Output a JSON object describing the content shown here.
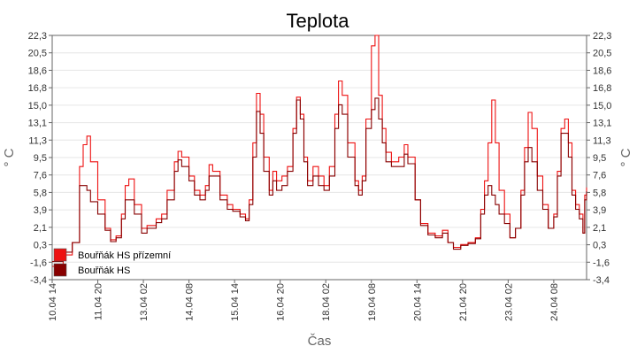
{
  "chart_data": {
    "type": "line",
    "title": "Teplota",
    "xlabel": "Čas",
    "ylabel": "° C",
    "ylim": [
      -3.4,
      22.3
    ],
    "y_ticks": [
      "22,3",
      "20,5",
      "18,6",
      "16,8",
      "15,0",
      "13,1",
      "11,3",
      "9,5",
      "7,6",
      "5,8",
      "3,9",
      "2,1",
      "0,3",
      "-1,6",
      "-3,4"
    ],
    "x_range": [
      0,
      14.65
    ],
    "x_ticks": [
      {
        "label": "10.04 14",
        "x": 0
      },
      {
        "label": "11.04 20",
        "x": 1.25
      },
      {
        "label": "13.04 02",
        "x": 2.5
      },
      {
        "label": "14.04 08",
        "x": 3.75
      },
      {
        "label": "15.04 14",
        "x": 5.0
      },
      {
        "label": "16.04 20",
        "x": 6.25
      },
      {
        "label": "18.04 02",
        "x": 7.5
      },
      {
        "label": "19.04 08",
        "x": 8.75
      },
      {
        "label": "20.04 14",
        "x": 10.0
      },
      {
        "label": "21.04 20",
        "x": 11.25
      },
      {
        "label": "23.04 02",
        "x": 12.5
      },
      {
        "label": "24.04 08",
        "x": 13.75
      }
    ],
    "grid": true,
    "legend_position": "bottom-left",
    "series": [
      {
        "name": "Bouřňák HS přízemní",
        "color": "#ee1111",
        "points": [
          [
            0,
            -2.0
          ],
          [
            0.3,
            -0.8
          ],
          [
            0.55,
            0.5
          ],
          [
            0.75,
            8.5
          ],
          [
            0.85,
            10.8
          ],
          [
            0.95,
            11.7
          ],
          [
            1.05,
            9.0
          ],
          [
            1.25,
            5.0
          ],
          [
            1.45,
            2.0
          ],
          [
            1.6,
            0.8
          ],
          [
            1.75,
            1.2
          ],
          [
            1.9,
            3.5
          ],
          [
            2.0,
            6.5
          ],
          [
            2.1,
            7.2
          ],
          [
            2.25,
            4.5
          ],
          [
            2.45,
            2.0
          ],
          [
            2.6,
            2.3
          ],
          [
            2.85,
            3.0
          ],
          [
            3.0,
            3.5
          ],
          [
            3.15,
            6.0
          ],
          [
            3.35,
            9.0
          ],
          [
            3.45,
            10.1
          ],
          [
            3.55,
            9.5
          ],
          [
            3.75,
            7.5
          ],
          [
            3.9,
            6.0
          ],
          [
            4.05,
            5.5
          ],
          [
            4.2,
            6.5
          ],
          [
            4.3,
            8.7
          ],
          [
            4.4,
            8.0
          ],
          [
            4.6,
            5.5
          ],
          [
            4.8,
            4.5
          ],
          [
            4.95,
            4.0
          ],
          [
            5.15,
            3.5
          ],
          [
            5.3,
            3.0
          ],
          [
            5.4,
            5.0
          ],
          [
            5.5,
            11.0
          ],
          [
            5.6,
            16.2
          ],
          [
            5.7,
            14.0
          ],
          [
            5.8,
            9.5
          ],
          [
            5.95,
            6.0
          ],
          [
            6.05,
            8.0
          ],
          [
            6.15,
            7.0
          ],
          [
            6.3,
            7.5
          ],
          [
            6.45,
            8.5
          ],
          [
            6.6,
            12.5
          ],
          [
            6.7,
            15.8
          ],
          [
            6.8,
            14.0
          ],
          [
            6.9,
            9.5
          ],
          [
            7.0,
            7.0
          ],
          [
            7.15,
            8.5
          ],
          [
            7.3,
            7.5
          ],
          [
            7.45,
            6.5
          ],
          [
            7.6,
            8.5
          ],
          [
            7.75,
            14.0
          ],
          [
            7.85,
            17.5
          ],
          [
            7.95,
            16.0
          ],
          [
            8.1,
            11.0
          ],
          [
            8.3,
            7.0
          ],
          [
            8.4,
            6.0
          ],
          [
            8.5,
            7.5
          ],
          [
            8.6,
            13.5
          ],
          [
            8.75,
            21.2
          ],
          [
            8.85,
            22.3
          ],
          [
            8.95,
            16.0
          ],
          [
            9.05,
            12.5
          ],
          [
            9.15,
            10.0
          ],
          [
            9.3,
            9.0
          ],
          [
            9.5,
            9.5
          ],
          [
            9.65,
            10.8
          ],
          [
            9.75,
            9.5
          ],
          [
            9.95,
            5.0
          ],
          [
            10.1,
            2.5
          ],
          [
            10.3,
            1.5
          ],
          [
            10.5,
            1.2
          ],
          [
            10.7,
            1.8
          ],
          [
            10.85,
            0.5
          ],
          [
            11.0,
            0.0
          ],
          [
            11.2,
            0.3
          ],
          [
            11.4,
            0.5
          ],
          [
            11.6,
            1.0
          ],
          [
            11.75,
            4.0
          ],
          [
            11.85,
            7.0
          ],
          [
            11.95,
            11.0
          ],
          [
            12.05,
            15.5
          ],
          [
            12.15,
            11.0
          ],
          [
            12.25,
            6.0
          ],
          [
            12.4,
            3.5
          ],
          [
            12.55,
            1.0
          ],
          [
            12.7,
            2.0
          ],
          [
            12.85,
            6.0
          ],
          [
            12.95,
            10.5
          ],
          [
            13.05,
            14.2
          ],
          [
            13.15,
            12.5
          ],
          [
            13.3,
            7.5
          ],
          [
            13.45,
            4.5
          ],
          [
            13.6,
            2.0
          ],
          [
            13.75,
            3.5
          ],
          [
            13.85,
            8.0
          ],
          [
            13.95,
            12.5
          ],
          [
            14.05,
            13.5
          ],
          [
            14.15,
            11.0
          ],
          [
            14.25,
            6.0
          ],
          [
            14.35,
            4.5
          ],
          [
            14.45,
            3.5
          ],
          [
            14.55,
            1.5
          ],
          [
            14.6,
            5.5
          ],
          [
            14.65,
            6.3
          ]
        ]
      },
      {
        "name": "Bouřňák HS",
        "color": "#880000",
        "points": [
          [
            0,
            -1.5
          ],
          [
            0.3,
            -0.5
          ],
          [
            0.55,
            0.5
          ],
          [
            0.75,
            6.5
          ],
          [
            0.85,
            6.5
          ],
          [
            0.95,
            6.0
          ],
          [
            1.05,
            4.8
          ],
          [
            1.25,
            3.5
          ],
          [
            1.45,
            1.8
          ],
          [
            1.6,
            0.6
          ],
          [
            1.75,
            1.0
          ],
          [
            1.9,
            3.0
          ],
          [
            2.0,
            5.0
          ],
          [
            2.1,
            5.0
          ],
          [
            2.25,
            3.5
          ],
          [
            2.45,
            1.5
          ],
          [
            2.6,
            2.0
          ],
          [
            2.85,
            2.6
          ],
          [
            3.0,
            3.0
          ],
          [
            3.15,
            5.0
          ],
          [
            3.35,
            8.0
          ],
          [
            3.45,
            9.2
          ],
          [
            3.55,
            8.5
          ],
          [
            3.75,
            7.0
          ],
          [
            3.9,
            5.5
          ],
          [
            4.05,
            5.0
          ],
          [
            4.2,
            6.0
          ],
          [
            4.3,
            7.5
          ],
          [
            4.4,
            7.5
          ],
          [
            4.6,
            5.0
          ],
          [
            4.8,
            4.0
          ],
          [
            4.95,
            3.8
          ],
          [
            5.15,
            3.2
          ],
          [
            5.3,
            2.8
          ],
          [
            5.4,
            4.5
          ],
          [
            5.5,
            9.5
          ],
          [
            5.6,
            14.3
          ],
          [
            5.7,
            12.0
          ],
          [
            5.8,
            8.0
          ],
          [
            5.95,
            5.5
          ],
          [
            6.05,
            7.0
          ],
          [
            6.15,
            6.0
          ],
          [
            6.3,
            6.5
          ],
          [
            6.45,
            8.0
          ],
          [
            6.6,
            12.0
          ],
          [
            6.7,
            15.5
          ],
          [
            6.8,
            13.5
          ],
          [
            6.9,
            9.0
          ],
          [
            7.0,
            6.5
          ],
          [
            7.15,
            7.5
          ],
          [
            7.3,
            6.5
          ],
          [
            7.45,
            6.0
          ],
          [
            7.6,
            7.5
          ],
          [
            7.75,
            12.5
          ],
          [
            7.85,
            15.0
          ],
          [
            7.95,
            14.0
          ],
          [
            8.1,
            9.5
          ],
          [
            8.3,
            6.5
          ],
          [
            8.4,
            5.5
          ],
          [
            8.5,
            7.0
          ],
          [
            8.6,
            12.5
          ],
          [
            8.75,
            14.5
          ],
          [
            8.85,
            15.7
          ],
          [
            8.95,
            13.5
          ],
          [
            9.05,
            11.0
          ],
          [
            9.15,
            9.0
          ],
          [
            9.3,
            8.5
          ],
          [
            9.5,
            8.5
          ],
          [
            9.65,
            9.8
          ],
          [
            9.75,
            8.8
          ],
          [
            9.95,
            5.0
          ],
          [
            10.1,
            2.3
          ],
          [
            10.3,
            1.3
          ],
          [
            10.5,
            1.0
          ],
          [
            10.7,
            1.5
          ],
          [
            10.85,
            0.5
          ],
          [
            11.0,
            -0.2
          ],
          [
            11.2,
            0.2
          ],
          [
            11.4,
            0.4
          ],
          [
            11.6,
            0.9
          ],
          [
            11.75,
            3.5
          ],
          [
            11.85,
            5.5
          ],
          [
            11.95,
            6.5
          ],
          [
            12.05,
            5.5
          ],
          [
            12.15,
            4.5
          ],
          [
            12.25,
            3.5
          ],
          [
            12.4,
            2.5
          ],
          [
            12.55,
            1.0
          ],
          [
            12.7,
            2.0
          ],
          [
            12.85,
            5.5
          ],
          [
            12.95,
            9.0
          ],
          [
            13.05,
            10.5
          ],
          [
            13.15,
            9.0
          ],
          [
            13.3,
            6.0
          ],
          [
            13.45,
            4.0
          ],
          [
            13.6,
            2.0
          ],
          [
            13.75,
            3.2
          ],
          [
            13.85,
            7.5
          ],
          [
            13.95,
            12.0
          ],
          [
            14.05,
            12.0
          ],
          [
            14.15,
            9.5
          ],
          [
            14.25,
            5.5
          ],
          [
            14.35,
            4.0
          ],
          [
            14.45,
            3.0
          ],
          [
            14.55,
            1.5
          ],
          [
            14.6,
            5.0
          ],
          [
            14.65,
            5.9
          ]
        ]
      }
    ]
  }
}
